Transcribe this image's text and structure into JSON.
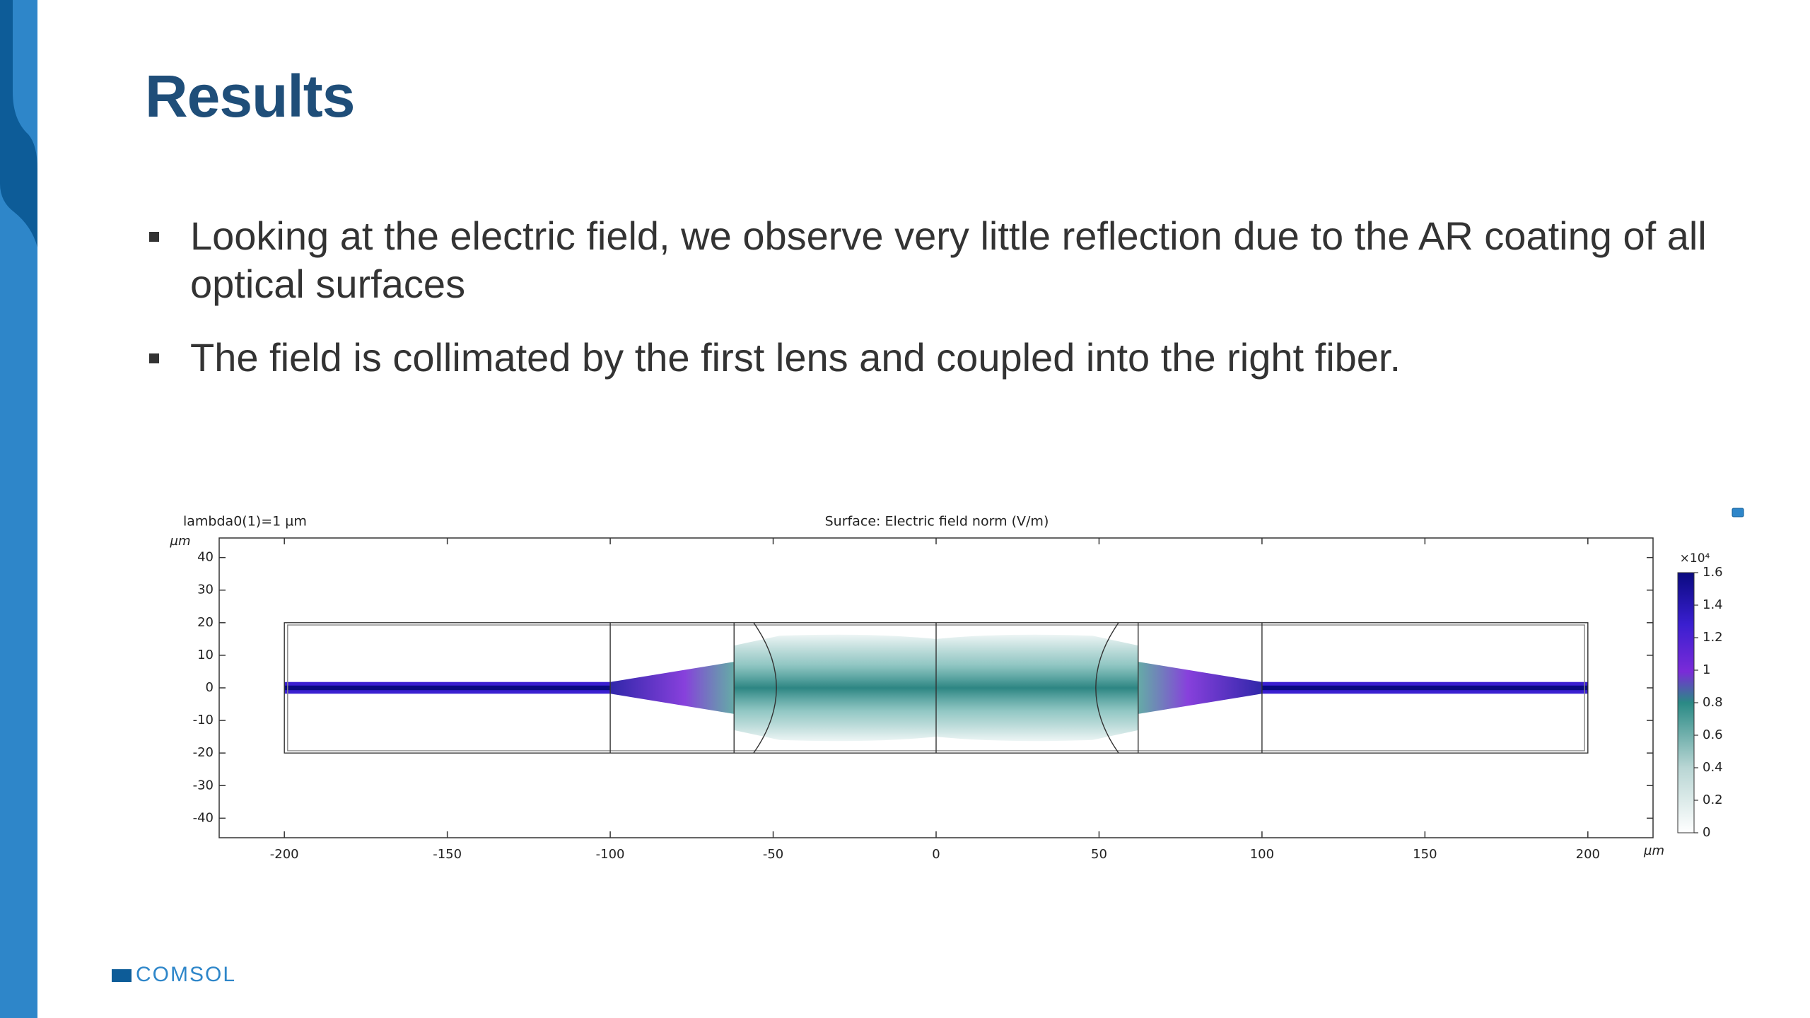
{
  "slide": {
    "title": "Results",
    "bullets": [
      "Looking at the electric field, we observe very little reflection due to the AR coating of all optical surfaces",
      "The field is collimated by the first lens and coupled into the right fiber."
    ],
    "logo": "COMSOL"
  },
  "figure": {
    "parameter_label": "lambda0(1)=1 µm",
    "title": "Surface: Electric field norm (V/m)",
    "x_unit": "µm",
    "y_unit": "µm",
    "xlim": [
      -220,
      220
    ],
    "ylim": [
      -46,
      46
    ],
    "xticks": [
      -200,
      -150,
      -100,
      -50,
      0,
      50,
      100,
      150,
      200
    ],
    "yticks": [
      -40,
      -30,
      -20,
      -10,
      0,
      10,
      20,
      30,
      40
    ],
    "colorbar": {
      "multiplier": "×10⁴",
      "lim": [
        0,
        1.6
      ],
      "ticks": [
        0,
        0.2,
        0.4,
        0.6,
        0.8,
        1,
        1.2,
        1.4,
        1.6
      ]
    }
  }
}
